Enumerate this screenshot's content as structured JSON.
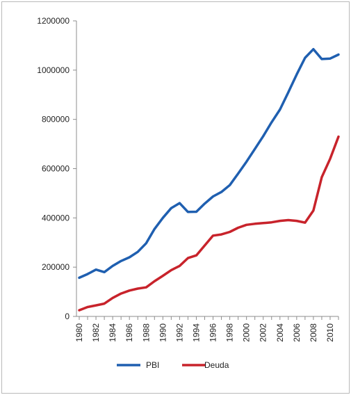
{
  "chart_data": {
    "type": "line",
    "title": "",
    "xlabel": "",
    "ylabel": "",
    "ylim": [
      0,
      1200000
    ],
    "yticks": [
      "0",
      "200000",
      "400000",
      "600000",
      "800000",
      "1000000",
      "1200000"
    ],
    "x": [
      1980,
      1981,
      1982,
      1983,
      1984,
      1985,
      1986,
      1987,
      1988,
      1989,
      1990,
      1991,
      1992,
      1993,
      1994,
      1995,
      1996,
      1997,
      1998,
      1999,
      2000,
      2001,
      2002,
      2003,
      2004,
      2005,
      2006,
      2007,
      2008,
      2009,
      2010,
      2011
    ],
    "xtick_labels": [
      "1980",
      "1982",
      "1984",
      "1986",
      "1988",
      "1990",
      "1992",
      "1994",
      "1996",
      "1998",
      "2000",
      "2002",
      "2004",
      "2006",
      "2008",
      "2010"
    ],
    "grid": false,
    "legend_position": "bottom",
    "series": [
      {
        "name": "PBI",
        "color": "#1f5fb0",
        "values": [
          157000,
          172000,
          190000,
          180000,
          205000,
          225000,
          240000,
          262000,
          297000,
          355000,
          400000,
          440000,
          460000,
          424000,
          425000,
          458000,
          487000,
          505000,
          533000,
          580000,
          628000,
          680000,
          732000,
          788000,
          840000,
          910000,
          982000,
          1050000,
          1085000,
          1045000,
          1047000,
          1063000
        ]
      },
      {
        "name": "Deuda",
        "color": "#c8232b",
        "values": [
          25000,
          38000,
          45000,
          52000,
          75000,
          93000,
          105000,
          113000,
          118000,
          143000,
          165000,
          188000,
          205000,
          237000,
          248000,
          288000,
          328000,
          333000,
          343000,
          360000,
          372000,
          376000,
          379000,
          382000,
          388000,
          391000,
          388000,
          381000,
          430000,
          565000,
          640000,
          730000
        ]
      }
    ]
  }
}
